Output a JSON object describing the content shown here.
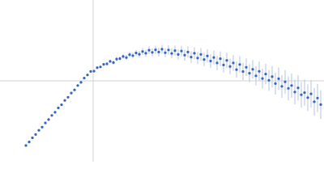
{
  "chart_data": {
    "type": "scatter",
    "xlim": [
      -115,
      285
    ],
    "ylim": [
      -100,
      100
    ],
    "zero_lines": true,
    "series": [
      {
        "color": "#3465c2",
        "error_color": "#b4c4e6",
        "x": [
          -83,
          -79,
          -75,
          -71,
          -67,
          -63,
          -59,
          -55,
          -51,
          -47,
          -43,
          -39,
          -35,
          -31,
          -27,
          -23,
          -19,
          -15,
          -11,
          -7,
          -3,
          1,
          5,
          9,
          13,
          17,
          21,
          25,
          29,
          33,
          37,
          41,
          45,
          49,
          53,
          57,
          61,
          65,
          69,
          73,
          77,
          81,
          85,
          89,
          93,
          97,
          101,
          105,
          109,
          113,
          117,
          121,
          125,
          129,
          133,
          137,
          141,
          145,
          149,
          153,
          157,
          161,
          165,
          169,
          173,
          177,
          181,
          185,
          189,
          193,
          197,
          201,
          205,
          209,
          213,
          217,
          221,
          225,
          229,
          233,
          237,
          241,
          245,
          249,
          253,
          257,
          261,
          265,
          269,
          273,
          277,
          281
        ],
        "values": [
          -80,
          -75.6,
          -70.5,
          -66.4,
          -61.2,
          -57.3,
          -52.1,
          -47.9,
          -42.8,
          -38.9,
          -33.5,
          -29.6,
          -24.2,
          -20.3,
          -15.1,
          -11.2,
          -5.8,
          -1.9,
          3.4,
          7.3,
          11.6,
          12.0,
          16.3,
          17.2,
          20.4,
          21.0,
          24.1,
          22.6,
          26.9,
          27.5,
          30.1,
          28.8,
          32.4,
          31.2,
          34.5,
          32.9,
          36.3,
          34.1,
          37.9,
          35.2,
          38.4,
          35.6,
          39.1,
          34.8,
          38.2,
          33.9,
          37.4,
          32.6,
          36.9,
          31.8,
          35.6,
          29.4,
          34.1,
          28.2,
          32.7,
          26.4,
          30.8,
          24.5,
          28.9,
          22.1,
          27.4,
          19.6,
          25.3,
          17.8,
          22.1,
          13.9,
          20.2,
          11.5,
          16.8,
          9.4,
          14.3,
          6.2,
          11.8,
          2.9,
          8.4,
          0.6,
          5.1,
          -3.4,
          2.6,
          -6.8,
          -1.2,
          -9.3,
          -5.8,
          -13.9,
          -8.7,
          -17.2,
          -14.6,
          -20.8,
          -16.1,
          -25.9,
          -21.3,
          -29.4
        ],
        "errors": [
          0.5,
          0.5,
          0.5,
          0.5,
          0.5,
          0.5,
          0.5,
          0.6,
          0.6,
          0.6,
          0.6,
          0.6,
          0.7,
          0.7,
          0.7,
          0.7,
          0.8,
          0.8,
          0.8,
          0.9,
          0.9,
          1,
          1.2,
          1.5,
          1.8,
          2,
          2.2,
          2.4,
          2.6,
          2.8,
          3,
          3.2,
          3.4,
          3.6,
          3.8,
          4,
          4.2,
          4.4,
          4.6,
          4.8,
          5,
          5.2,
          5.4,
          5.6,
          5.8,
          6,
          6.2,
          6.4,
          6.6,
          6.8,
          7,
          7.2,
          7.4,
          7.6,
          7.8,
          8,
          8.2,
          8.4,
          8.6,
          8.8,
          9,
          9.2,
          9.4,
          9.6,
          9.8,
          10,
          10.3,
          10.6,
          10.9,
          11.2,
          11.5,
          11.8,
          12.1,
          12.4,
          12.7,
          13,
          13.3,
          13.6,
          13.9,
          14.2,
          14.5,
          14.8,
          15.1,
          15.4,
          15.7,
          16,
          16.3,
          16.6,
          16.9,
          17.2,
          17.5,
          17.8
        ]
      }
    ]
  }
}
